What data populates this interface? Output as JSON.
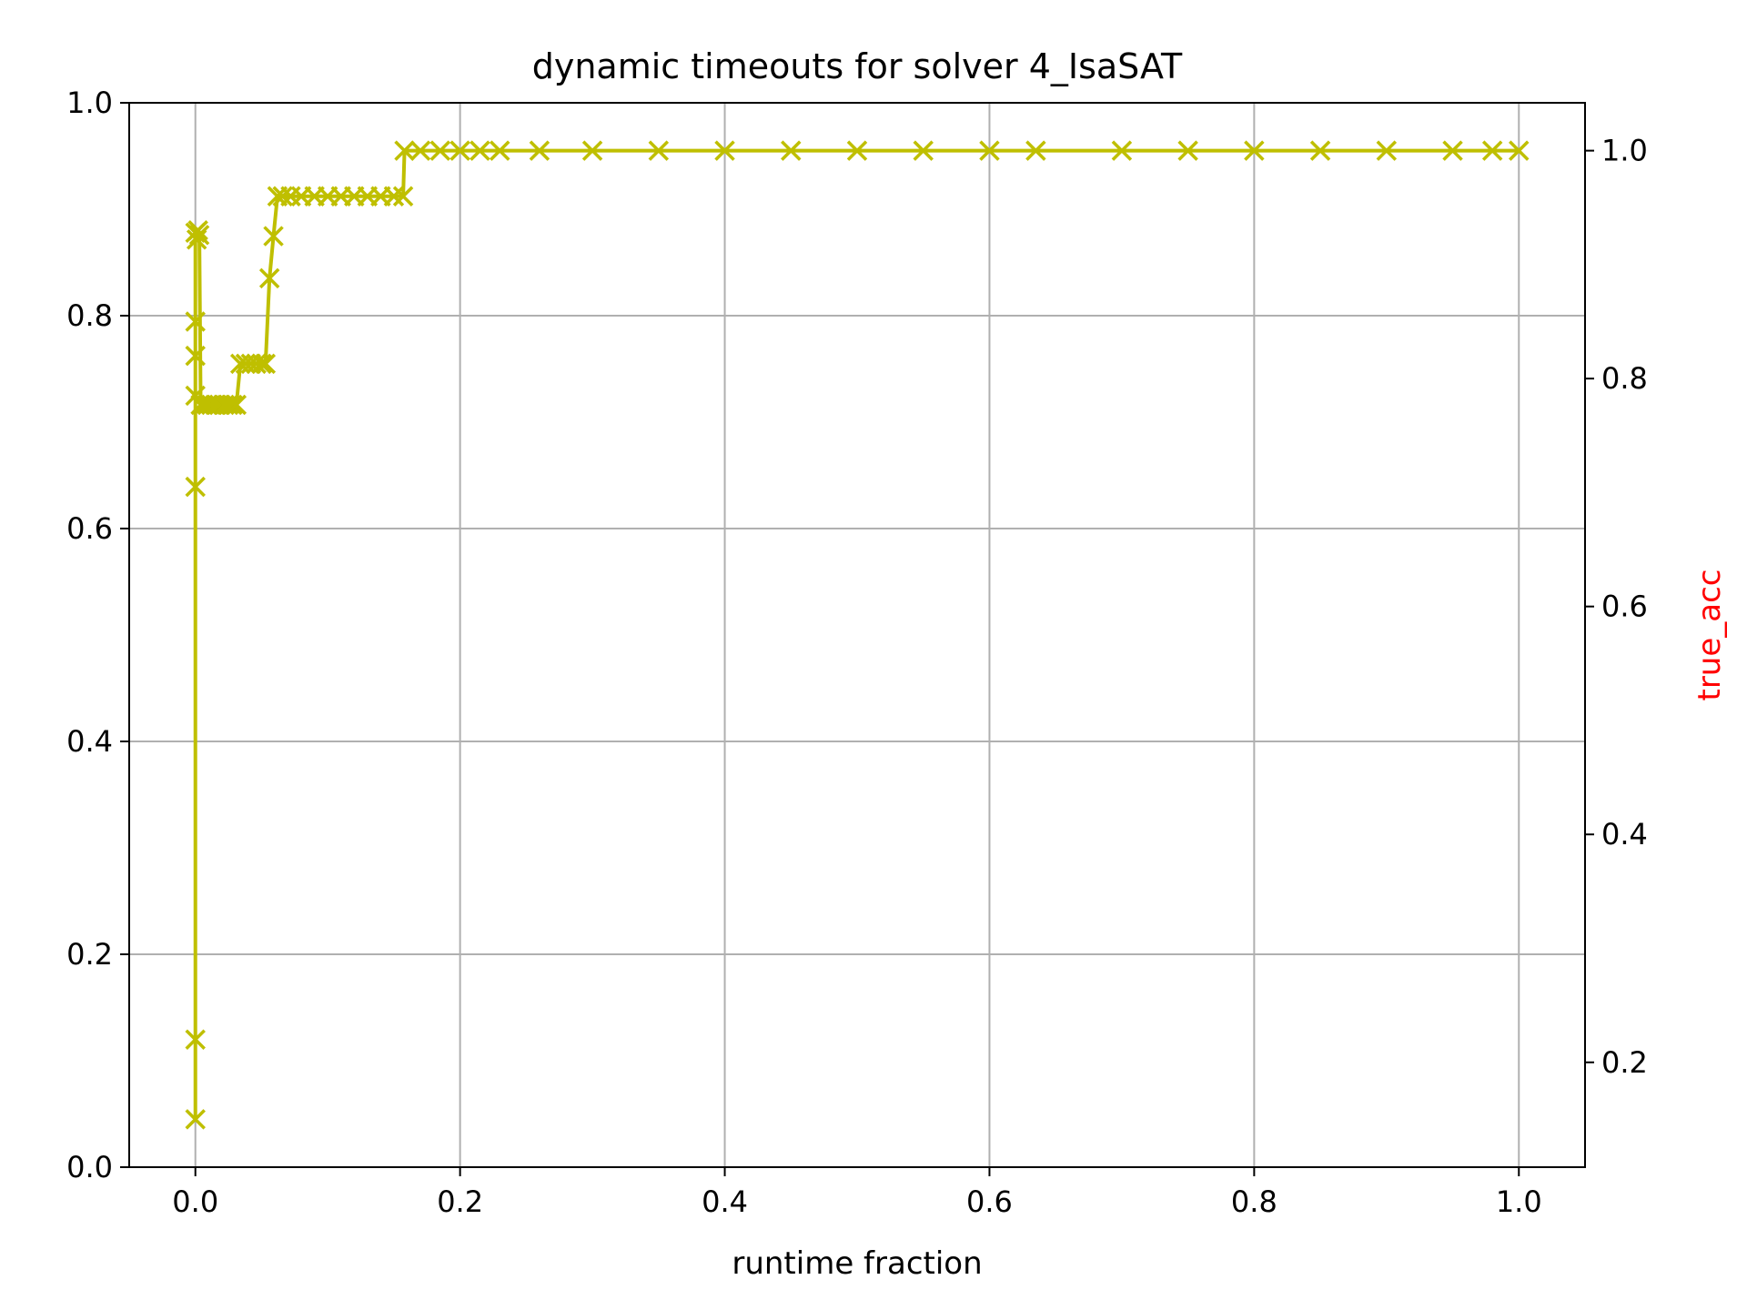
{
  "chart_data": {
    "type": "line",
    "title": "dynamic timeouts for solver 4_IsaSAT",
    "xlabel": "runtime fraction",
    "ylabel": "",
    "ylabel_right": "true_acc",
    "xlim": [
      -0.05,
      1.05
    ],
    "ylim": [
      0.0,
      1.0
    ],
    "ylim_right": [
      0.108,
      1.042
    ],
    "x_ticks": [
      "0.0",
      "0.2",
      "0.4",
      "0.6",
      "0.8",
      "1.0"
    ],
    "y_ticks": [
      "0.0",
      "0.2",
      "0.4",
      "0.6",
      "0.8",
      "1.0"
    ],
    "y_ticks_right": [
      "0.2",
      "0.4",
      "0.6",
      "0.8",
      "1.0"
    ],
    "grid": true,
    "marker": "x",
    "series": [
      {
        "color": "#bfbf00",
        "axis": "right",
        "points": [
          [
            0.0,
            0.15
          ],
          [
            0.0,
            0.22
          ],
          [
            0.0,
            0.705
          ],
          [
            0.0,
            0.785
          ],
          [
            0.0,
            0.82
          ],
          [
            0.0,
            0.85
          ],
          [
            0.0,
            0.928
          ],
          [
            0.001,
            0.922
          ],
          [
            0.002,
            0.93
          ],
          [
            0.003,
            0.926
          ],
          [
            0.004,
            0.777
          ],
          [
            0.006,
            0.777
          ],
          [
            0.009,
            0.777
          ],
          [
            0.012,
            0.777
          ],
          [
            0.015,
            0.777
          ],
          [
            0.018,
            0.777
          ],
          [
            0.022,
            0.777
          ],
          [
            0.025,
            0.777
          ],
          [
            0.028,
            0.777
          ],
          [
            0.031,
            0.777
          ],
          [
            0.034,
            0.813
          ],
          [
            0.038,
            0.813
          ],
          [
            0.042,
            0.813
          ],
          [
            0.046,
            0.813
          ],
          [
            0.05,
            0.813
          ],
          [
            0.053,
            0.813
          ],
          [
            0.056,
            0.888
          ],
          [
            0.059,
            0.925
          ],
          [
            0.062,
            0.96
          ],
          [
            0.066,
            0.96
          ],
          [
            0.072,
            0.96
          ],
          [
            0.08,
            0.96
          ],
          [
            0.09,
            0.96
          ],
          [
            0.1,
            0.96
          ],
          [
            0.11,
            0.96
          ],
          [
            0.12,
            0.96
          ],
          [
            0.13,
            0.96
          ],
          [
            0.14,
            0.96
          ],
          [
            0.15,
            0.96
          ],
          [
            0.157,
            0.96
          ],
          [
            0.158,
            1.0
          ],
          [
            0.17,
            1.0
          ],
          [
            0.185,
            1.0
          ],
          [
            0.2,
            1.0
          ],
          [
            0.215,
            1.0
          ],
          [
            0.23,
            1.0
          ],
          [
            0.26,
            1.0
          ],
          [
            0.3,
            1.0
          ],
          [
            0.35,
            1.0
          ],
          [
            0.4,
            1.0
          ],
          [
            0.45,
            1.0
          ],
          [
            0.5,
            1.0
          ],
          [
            0.55,
            1.0
          ],
          [
            0.6,
            1.0
          ],
          [
            0.635,
            1.0
          ],
          [
            0.7,
            1.0
          ],
          [
            0.75,
            1.0
          ],
          [
            0.8,
            1.0
          ],
          [
            0.85,
            1.0
          ],
          [
            0.9,
            1.0
          ],
          [
            0.95,
            1.0
          ],
          [
            0.98,
            1.0
          ],
          [
            1.0,
            1.0
          ]
        ]
      }
    ]
  }
}
